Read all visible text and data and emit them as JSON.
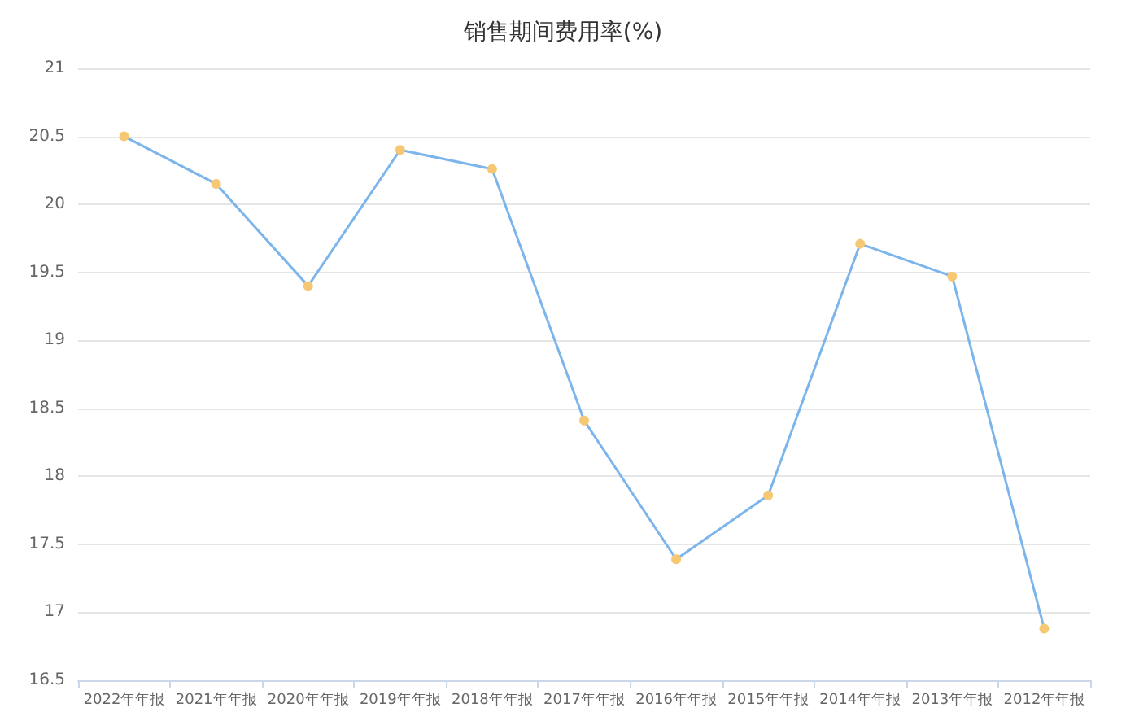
{
  "chart_data": {
    "type": "line",
    "title": "销售期间费用率(%)",
    "categories": [
      "2022年年报",
      "2021年年报",
      "2020年年报",
      "2019年年报",
      "2018年年报",
      "2017年年报",
      "2016年年报",
      "2015年年报",
      "2014年年报",
      "2013年年报",
      "2012年年报"
    ],
    "series": [
      {
        "color": "#7cb5ec",
        "colors": [
          "#f7c873",
          "#f7c873",
          "#f7c873",
          "#f7c873",
          "#f7c873",
          "#f7c873",
          "#f7c873",
          "#f7c873",
          "#f7c873",
          "#f7c873",
          "#f7c873"
        ],
        "values": [
          20.5,
          20.15,
          19.4,
          20.4,
          20.26,
          18.41,
          17.39,
          17.86,
          19.71,
          19.47,
          16.88
        ]
      }
    ],
    "ylim": [
      16.5,
      21
    ],
    "yticks": [
      16.5,
      17,
      17.5,
      18,
      18.5,
      19,
      19.5,
      20,
      20.5,
      21
    ],
    "grid": "y",
    "marker": "circle",
    "line_style": "solid"
  }
}
